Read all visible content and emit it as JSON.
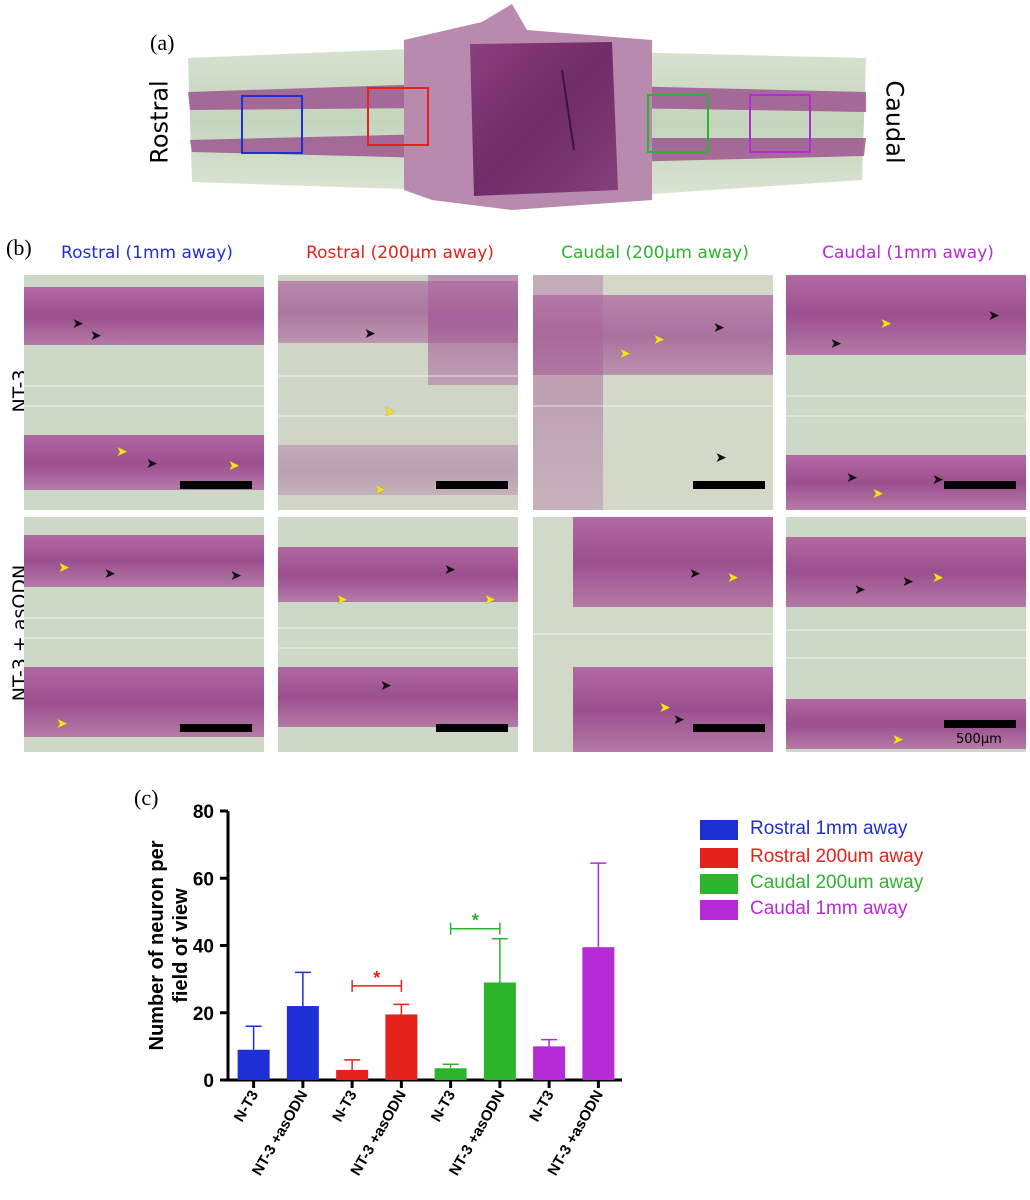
{
  "panels": {
    "a_label": "(a)",
    "b_label": "(b)",
    "c_label": "(c)"
  },
  "section": {
    "left_word": "Rostral",
    "right_word": "Caudal"
  },
  "columns": [
    {
      "title": "Rostral (1mm away)",
      "color": "#1f2fd6"
    },
    {
      "title": "Rostral (200μm away)",
      "color": "#e3231b"
    },
    {
      "title": "Caudal (200μm away)",
      "color": "#2cb52c"
    },
    {
      "title": "Caudal (1mm away)",
      "color": "#b52bd6"
    }
  ],
  "rows": [
    {
      "label": "NT-3"
    },
    {
      "label": "NT-3 + asODN"
    }
  ],
  "scale_label": "500μm",
  "chart_data": {
    "type": "bar",
    "ylabel": "Number of neuron per field of view",
    "xlabel": "",
    "ylim": [
      0,
      80
    ],
    "yticks": [
      "0",
      "20",
      "40",
      "60",
      "80"
    ],
    "categories": [
      "N-T3",
      "NT-3 +asODN",
      "N-T3",
      "NT-3 +asODN",
      "N-T3",
      "NT-3 +asODN",
      "N-T3",
      "NT-3 +asODN"
    ],
    "bars": [
      {
        "group": 0,
        "value": 9,
        "error": 7,
        "color": "#1f2fd6"
      },
      {
        "group": 0,
        "value": 22,
        "error": 10,
        "color": "#1f2fd6"
      },
      {
        "group": 1,
        "value": 3,
        "error": 3,
        "color": "#e3231b"
      },
      {
        "group": 1,
        "value": 19.5,
        "error": 3,
        "color": "#e3231b"
      },
      {
        "group": 2,
        "value": 3.5,
        "error": 1.2,
        "color": "#2cb52c"
      },
      {
        "group": 2,
        "value": 29,
        "error": 13,
        "color": "#2cb52c"
      },
      {
        "group": 3,
        "value": 10,
        "error": 2,
        "color": "#b52bd6"
      },
      {
        "group": 3,
        "value": 39.5,
        "error": 25,
        "color": "#b52bd6"
      }
    ],
    "legend": [
      {
        "name": "Rostral 1mm away",
        "color": "#1f2fd6"
      },
      {
        "name": "Rostral 200um away",
        "color": "#e3231b"
      },
      {
        "name": "Caudal 200um away",
        "color": "#2cb52c"
      },
      {
        "name": "Caudal 1mm away",
        "color": "#b52bd6"
      }
    ],
    "legend_position": "top-right",
    "significance": [
      {
        "from_bar": 2,
        "to_bar": 3,
        "y": 28,
        "label": "*",
        "color": "#e3231b"
      },
      {
        "from_bar": 4,
        "to_bar": 5,
        "y": 45,
        "label": "*",
        "color": "#2cb52c"
      }
    ],
    "grid": false
  }
}
